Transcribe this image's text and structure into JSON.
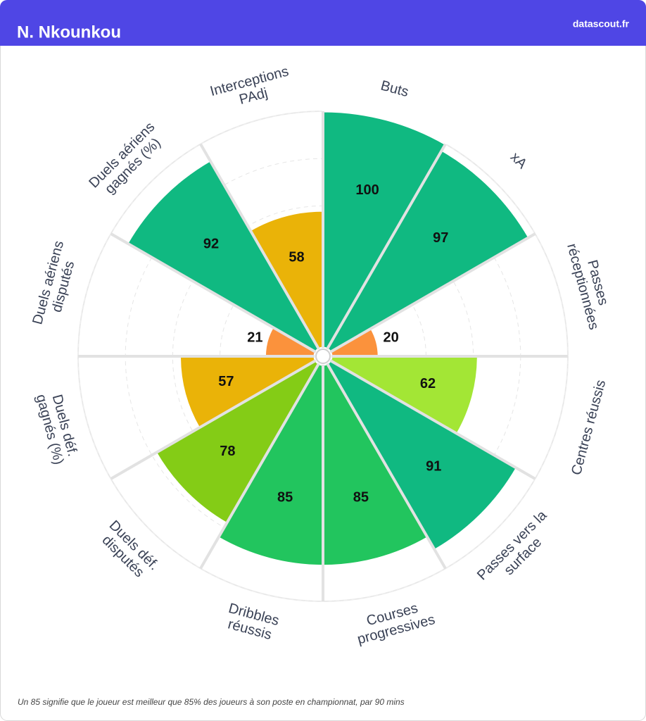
{
  "chart_data": {
    "type": "polar_bar",
    "title": "N. Nkounkou",
    "source": "datascout.fr",
    "footnote": "Un 85 signifie que le joueur est meilleur que 85% des joueurs à son poste en championnat, par 90 mins",
    "categories": [
      "Buts",
      "xA",
      "Passes\nréceptionnées",
      "Centres réussis",
      "Passes vers la\nsurface",
      "Courses\nprogressives",
      "Dribbles\nréussis",
      "Duels déf.\ndisputés",
      "Duels déf.\ngagnés (%)",
      "Duels aériens\ndisputés",
      "Duels aériens\ngagnés (%)",
      "Interceptions\nPAdj"
    ],
    "values": [
      100,
      97,
      20,
      62,
      91,
      85,
      85,
      78,
      57,
      21,
      92,
      58
    ],
    "colors": [
      "#10b981",
      "#10b981",
      "#fb923c",
      "#a3e635",
      "#10b981",
      "#22c55e",
      "#22c55e",
      "#84cc16",
      "#eab308",
      "#fb923c",
      "#10b981",
      "#eab308"
    ],
    "rlim": [
      0,
      100
    ],
    "rticks": [
      20,
      40,
      60,
      80,
      100
    ],
    "grid": true
  }
}
